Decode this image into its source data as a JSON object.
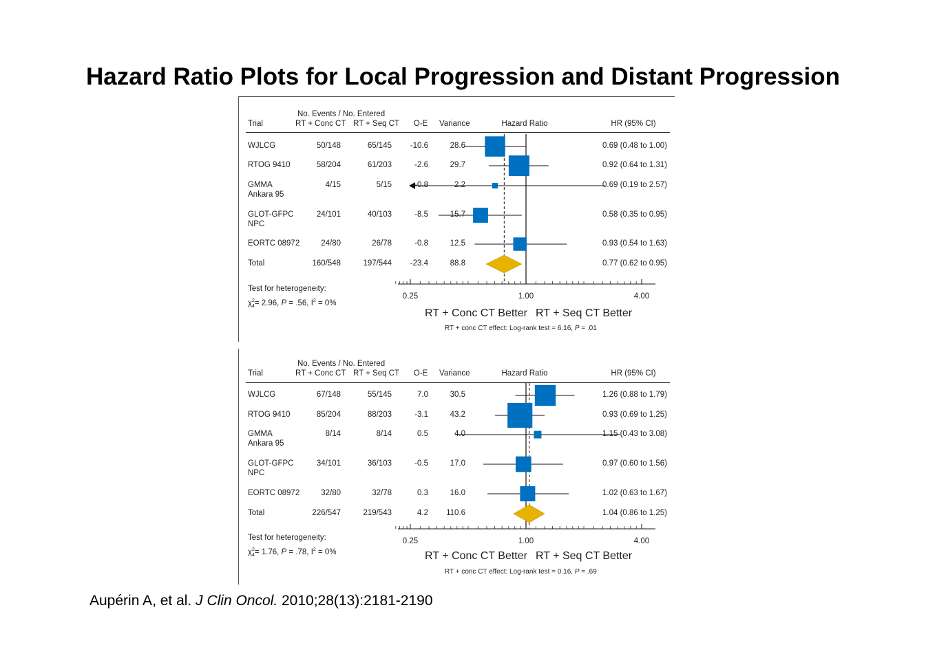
{
  "title": "Hazard Ratio Plots for Local Progression and Distant Progression",
  "citation": {
    "authors": "Aupérin A, et al.",
    "journal": "J Clin Oncol.",
    "ref": "2010;28(13):2181-2190"
  },
  "colors": {
    "box": "#0070C0",
    "diamond": "#E6B400",
    "line": "#111111"
  },
  "chart_data": [
    {
      "type": "forest",
      "x_scale": "log",
      "xlim": [
        0.25,
        4.0
      ],
      "xticks": [
        0.25,
        1.0,
        4.0
      ],
      "xtick_labels": [
        "0.25",
        "1.00",
        "4.00"
      ],
      "null_line": 1.0,
      "pooled_line": 0.77,
      "header": {
        "group": "No. Events / No. Entered",
        "trial": "Trial",
        "conc": "RT + Conc CT",
        "seq": "RT + Seq CT",
        "oe": "O-E",
        "variance": "Variance",
        "hr_plot": "Hazard Ratio",
        "hr_ci": "HR (95% CI)"
      },
      "rows": [
        {
          "trial": "WJLCG",
          "trial2": "",
          "conc": "50/148",
          "seq": "65/145",
          "oe": "-10.6",
          "variance": "28.6",
          "hr": 0.69,
          "lo": 0.48,
          "hi": 1.0,
          "weight": 28.6,
          "ci_text": "0.69 (0.48 to 1.00)",
          "arrow_left": false
        },
        {
          "trial": "RTOG 9410",
          "trial2": "",
          "conc": "58/204",
          "seq": "61/203",
          "oe": "-2.6",
          "variance": "29.7",
          "hr": 0.92,
          "lo": 0.64,
          "hi": 1.31,
          "weight": 29.7,
          "ci_text": "0.92 (0.64 to 1.31)",
          "arrow_left": false
        },
        {
          "trial": "GMMA",
          "trial2": "Ankara 95",
          "conc": "4/15",
          "seq": "5/15",
          "oe": "-0.8",
          "variance": "2.2",
          "hr": 0.69,
          "lo": 0.19,
          "hi": 2.57,
          "weight": 2.2,
          "ci_text": "0.69 (0.19 to 2.57)",
          "arrow_left": true
        },
        {
          "trial": "GLOT-GFPC",
          "trial2": "NPC",
          "conc": "24/101",
          "seq": "40/103",
          "oe": "-8.5",
          "variance": "15.7",
          "hr": 0.58,
          "lo": 0.35,
          "hi": 0.95,
          "weight": 15.7,
          "ci_text": "0.58 (0.35 to 0.95)",
          "arrow_left": false
        },
        {
          "trial": "EORTC 08972",
          "trial2": "",
          "conc": "24/80",
          "seq": "26/78",
          "oe": "-0.8",
          "variance": "12.5",
          "hr": 0.93,
          "lo": 0.54,
          "hi": 1.63,
          "weight": 12.5,
          "ci_text": "0.93 (0.54 to 1.63)",
          "arrow_left": false
        }
      ],
      "total": {
        "trial": "Total",
        "conc": "160/548",
        "seq": "197/544",
        "oe": "-23.4",
        "variance": "88.8",
        "hr": 0.77,
        "lo": 0.62,
        "hi": 0.95,
        "ci_text": "0.77 (0.62 to 0.95)"
      },
      "heterogeneity": {
        "label": "Test for heterogeneity:",
        "chi": "χ",
        "chi_sup": "2",
        "chi_sub": "4",
        "chi_val": "= 2.96, ",
        "p_label": "P",
        "p_val": " = .56, I",
        "i_sup": "2",
        "i_val": " = 0%"
      },
      "better_left": "RT + Conc CT Better",
      "better_right": "RT + Seq CT Better",
      "effect_note": {
        "text": "RT + conc CT effect: Log-rank test = 6.16, ",
        "p_label": "P",
        "p_val": " = .01"
      }
    },
    {
      "type": "forest",
      "x_scale": "log",
      "xlim": [
        0.25,
        4.0
      ],
      "xticks": [
        0.25,
        1.0,
        4.0
      ],
      "xtick_labels": [
        "0.25",
        "1.00",
        "4.00"
      ],
      "null_line": 1.0,
      "pooled_line": 1.04,
      "header": {
        "group": "No. Events / No. Entered",
        "trial": "Trial",
        "conc": "RT + Conc CT",
        "seq": "RT + Seq CT",
        "oe": "O-E",
        "variance": "Variance",
        "hr_plot": "Hazard Ratio",
        "hr_ci": "HR (95% CI)"
      },
      "rows": [
        {
          "trial": "WJLCG",
          "trial2": "",
          "conc": "67/148",
          "seq": "55/145",
          "oe": "7.0",
          "variance": "30.5",
          "hr": 1.26,
          "lo": 0.88,
          "hi": 1.79,
          "weight": 30.5,
          "ci_text": "1.26 (0.88 to 1.79)",
          "arrow_left": false
        },
        {
          "trial": "RTOG 9410",
          "trial2": "",
          "conc": "85/204",
          "seq": "88/203",
          "oe": "-3.1",
          "variance": "43.2",
          "hr": 0.93,
          "lo": 0.69,
          "hi": 1.25,
          "weight": 43.2,
          "ci_text": "0.93 (0.69 to 1.25)",
          "arrow_left": false
        },
        {
          "trial": "GMMA",
          "trial2": "Ankara 95",
          "conc": "8/14",
          "seq": "8/14",
          "oe": "0.5",
          "variance": "4.0",
          "hr": 1.15,
          "lo": 0.43,
          "hi": 3.08,
          "weight": 4.0,
          "ci_text": "1.15 (0.43 to 3.08)",
          "arrow_left": false
        },
        {
          "trial": "GLOT-GFPC",
          "trial2": "NPC",
          "conc": "34/101",
          "seq": "36/103",
          "oe": "-0.5",
          "variance": "17.0",
          "hr": 0.97,
          "lo": 0.6,
          "hi": 1.56,
          "weight": 17.0,
          "ci_text": "0.97 (0.60 to 1.56)",
          "arrow_left": false
        },
        {
          "trial": "EORTC 08972",
          "trial2": "",
          "conc": "32/80",
          "seq": "32/78",
          "oe": "0.3",
          "variance": "16.0",
          "hr": 1.02,
          "lo": 0.63,
          "hi": 1.67,
          "weight": 16.0,
          "ci_text": "1.02 (0.63 to 1.67)",
          "arrow_left": false
        }
      ],
      "total": {
        "trial": "Total",
        "conc": "226/547",
        "seq": "219/543",
        "oe": "4.2",
        "variance": "110.6",
        "hr": 1.04,
        "lo": 0.86,
        "hi": 1.25,
        "ci_text": "1.04 (0.86 to 1.25)"
      },
      "heterogeneity": {
        "label": "Test for heterogeneity:",
        "chi": "χ",
        "chi_sup": "2",
        "chi_sub": "4",
        "chi_val": "= 1.76, ",
        "p_label": "P",
        "p_val": " = .78, I",
        "i_sup": "2",
        "i_val": " = 0%"
      },
      "better_left": "RT + Conc CT Better",
      "better_right": "RT + Seq CT Better",
      "effect_note": {
        "text": "RT + conc CT effect: Log-rank test = 0.16, ",
        "p_label": "P",
        "p_val": " = .69"
      }
    }
  ]
}
